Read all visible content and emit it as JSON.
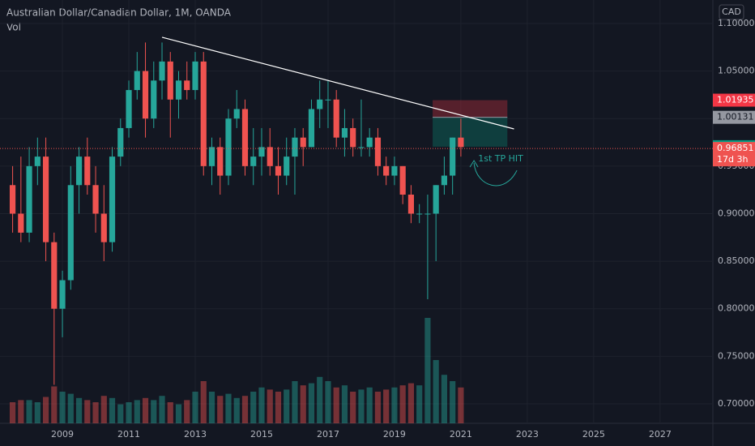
{
  "chart_data": {
    "type": "candlestick",
    "title": "Australian Dollar/Canadian Dollar, 1M, OANDA",
    "volume_label": "Vol",
    "currency": "CAD",
    "up_color": "#26a69a",
    "down_color": "#ef5350",
    "x": [
      2007.5,
      2007.75,
      2008.0,
      2008.25,
      2008.5,
      2008.75,
      2009.0,
      2009.25,
      2009.5,
      2009.75,
      2010.0,
      2010.25,
      2010.5,
      2010.75,
      2011.0,
      2011.25,
      2011.5,
      2011.75,
      2012.0,
      2012.25,
      2012.5,
      2012.75,
      2013.0,
      2013.25,
      2013.5,
      2013.75,
      2014.0,
      2014.25,
      2014.5,
      2014.75,
      2015.0,
      2015.25,
      2015.5,
      2015.75,
      2016.0,
      2016.25,
      2016.5,
      2016.75,
      2017.0,
      2017.25,
      2017.5,
      2017.75,
      2018.0,
      2018.25,
      2018.5,
      2018.75,
      2019.0,
      2019.25,
      2019.5,
      2019.75,
      2020.0,
      2020.25,
      2020.5,
      2020.75,
      2021.0
    ],
    "open": [
      0.93,
      0.9,
      0.88,
      0.95,
      0.96,
      0.87,
      0.8,
      0.83,
      0.93,
      0.96,
      0.93,
      0.9,
      0.87,
      0.96,
      0.99,
      1.03,
      1.05,
      1.0,
      1.04,
      1.06,
      1.02,
      1.04,
      1.03,
      1.06,
      0.95,
      0.97,
      0.94,
      1.0,
      1.01,
      0.95,
      0.96,
      0.97,
      0.95,
      0.94,
      0.96,
      0.98,
      0.97,
      1.01,
      1.02,
      1.02,
      0.98,
      0.99,
      0.97,
      0.97,
      0.98,
      0.95,
      0.94,
      0.95,
      0.92,
      0.9,
      0.9,
      0.9,
      0.93,
      0.94,
      0.98
    ],
    "high": [
      0.95,
      0.96,
      0.97,
      0.98,
      0.98,
      0.88,
      0.84,
      0.95,
      0.97,
      0.98,
      0.95,
      0.93,
      0.97,
      1.0,
      1.04,
      1.07,
      1.08,
      1.06,
      1.08,
      1.07,
      1.05,
      1.06,
      1.07,
      1.07,
      0.98,
      0.98,
      1.01,
      1.03,
      1.02,
      0.99,
      0.99,
      0.99,
      0.97,
      0.98,
      0.99,
      0.99,
      1.02,
      1.04,
      1.04,
      1.03,
      1.01,
      1.0,
      1.02,
      0.99,
      0.99,
      0.96,
      0.96,
      0.95,
      0.93,
      0.91,
      0.92,
      0.93,
      0.96,
      0.98,
      1.0
    ],
    "low": [
      0.88,
      0.87,
      0.87,
      0.93,
      0.85,
      0.72,
      0.77,
      0.82,
      0.9,
      0.92,
      0.88,
      0.85,
      0.86,
      0.95,
      0.98,
      1.02,
      0.98,
      0.99,
      1.02,
      0.98,
      1.0,
      1.02,
      1.02,
      0.94,
      0.93,
      0.92,
      0.93,
      0.99,
      0.94,
      0.93,
      0.94,
      0.94,
      0.92,
      0.93,
      0.92,
      0.95,
      0.97,
      0.99,
      0.99,
      0.97,
      0.96,
      0.96,
      0.96,
      0.96,
      0.94,
      0.93,
      0.93,
      0.91,
      0.89,
      0.89,
      0.81,
      0.85,
      0.92,
      0.92,
      0.96
    ],
    "close": [
      0.9,
      0.88,
      0.95,
      0.96,
      0.87,
      0.8,
      0.83,
      0.93,
      0.96,
      0.93,
      0.9,
      0.87,
      0.96,
      0.99,
      1.03,
      1.05,
      1.0,
      1.04,
      1.06,
      1.02,
      1.04,
      1.03,
      1.06,
      0.95,
      0.97,
      0.94,
      1.0,
      1.01,
      0.95,
      0.96,
      0.97,
      0.95,
      0.94,
      0.96,
      0.98,
      0.97,
      1.01,
      1.02,
      1.02,
      0.98,
      0.99,
      0.97,
      0.97,
      0.98,
      0.95,
      0.94,
      0.95,
      0.92,
      0.9,
      0.9,
      0.9,
      0.93,
      0.94,
      0.98,
      0.97
    ],
    "volume": [
      20,
      22,
      22,
      20,
      25,
      35,
      30,
      28,
      24,
      22,
      20,
      26,
      24,
      18,
      20,
      22,
      24,
      22,
      26,
      20,
      18,
      22,
      30,
      40,
      30,
      26,
      28,
      24,
      26,
      30,
      34,
      32,
      30,
      32,
      40,
      36,
      38,
      44,
      40,
      34,
      36,
      30,
      32,
      34,
      30,
      32,
      34,
      36,
      38,
      36,
      100,
      60,
      46,
      40,
      34
    ],
    "xlim": [
      2007.12,
      2028.59
    ],
    "xticks": [
      2009,
      2011,
      2013,
      2015,
      2017,
      2019,
      2021,
      2023,
      2025,
      2027
    ],
    "ylim": [
      0.6795,
      1.1247
    ],
    "yticks": [
      {
        "value": 0.7,
        "label": "0.70000"
      },
      {
        "value": 0.75,
        "label": "0.75000"
      },
      {
        "value": 0.8,
        "label": "0.80000"
      },
      {
        "value": 0.85,
        "label": "0.85000"
      },
      {
        "value": 0.9,
        "label": "0.90000"
      },
      {
        "value": 0.95,
        "label": "0.95000"
      },
      {
        "value": 1.0,
        "label": "1.00000"
      },
      {
        "value": 1.05,
        "label": "1.05000"
      },
      {
        "value": 1.1,
        "label": "1.10000"
      }
    ],
    "trendline": {
      "x": [
        2012.0,
        2022.6
      ],
      "y": [
        1.0855,
        0.9891
      ]
    },
    "position": {
      "x": [
        2020.15,
        2022.4
      ],
      "stop": 1.01935,
      "entry": 1.00131,
      "target": 0.97043
    },
    "last_price": 0.96851,
    "countdown": "17d 3h",
    "annotation": {
      "text": "1st TP HIT",
      "x": 2022.2,
      "y": 0.9575
    }
  }
}
